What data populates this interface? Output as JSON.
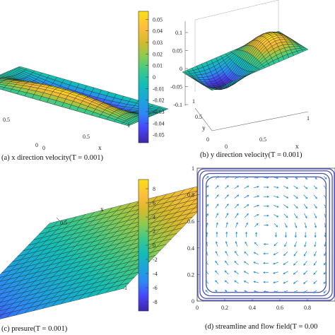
{
  "chart_data": [
    {
      "type": "surface3d",
      "caption": "(a) x direction velocity(T = 0.001)",
      "xlabel": "x",
      "x_ticks": [
        "0",
        "0.5",
        "1"
      ],
      "y_ticks": [
        "0.5",
        "0"
      ],
      "colorbar_ticks": [
        "0.05",
        "0.04",
        "0.03",
        "0.02",
        "0.01",
        "0",
        "-0.01",
        "-0.02",
        "-0.03",
        "-0.04",
        "-0.05"
      ],
      "colorbar_range": [
        -0.057,
        0.057
      ],
      "grid": 20
    },
    {
      "type": "surface3d",
      "caption": "(b) y direction velocity(T = 0.001)",
      "xlabel": "x",
      "ylabel": "y",
      "x_ticks": [
        "0",
        "0.5",
        "1"
      ],
      "y_ticks": [
        "0",
        "0.5",
        "1"
      ],
      "z_ticks": [
        "0.1",
        "0.05",
        "0",
        "-0.05",
        "-0.1"
      ],
      "zlim": [
        -0.1,
        0.1
      ],
      "grid": 20
    },
    {
      "type": "surface3d",
      "caption": "(c) presure(T = 0.001)",
      "xlabel": "x",
      "x_ticks": [
        "0",
        "0.5",
        "1"
      ],
      "colorbar_ticks": [
        "8",
        "6",
        "4",
        "2",
        "0",
        "-2",
        "-4",
        "-6",
        "-8"
      ],
      "colorbar_range": [
        -9.3,
        9.3
      ],
      "grid": 20
    },
    {
      "type": "quiver",
      "caption": "(d) streamline and flow field(T = 0.00",
      "x_ticks": [
        "0",
        "0.2",
        "0.4",
        "0.6",
        "0.8"
      ],
      "y_ticks": [
        "1",
        "0.8",
        "0.6",
        "0.4",
        "0.2",
        "0"
      ],
      "xlim": [
        0,
        1
      ],
      "ylim": [
        0,
        1
      ],
      "streamline_color": "#4b4fb8",
      "arrow_color": "#2e8fd0",
      "arrow_grid": 14
    }
  ],
  "colormap": [
    "#3e26a8",
    "#4745f8",
    "#2e87f7",
    "#1ba6d8",
    "#12bdb9",
    "#3bc98a",
    "#8ccb4f",
    "#d7ba2d",
    "#fdbe3d",
    "#f9e015"
  ]
}
